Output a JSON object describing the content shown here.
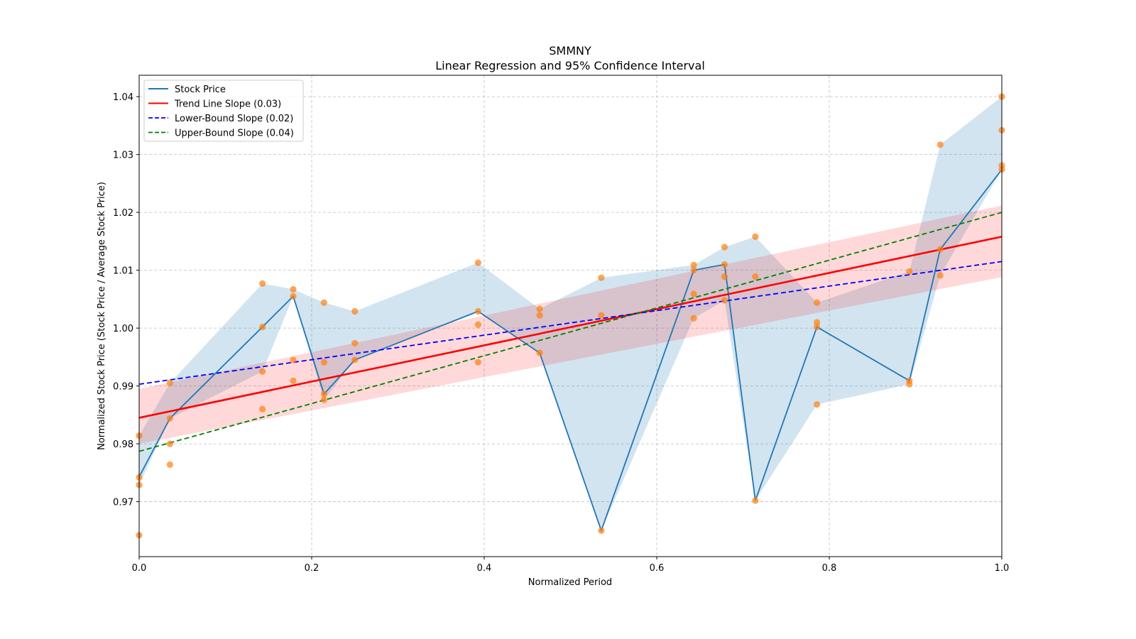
{
  "chart_data": {
    "type": "line",
    "title": "SMMNY",
    "subtitle": "Linear Regression and 95% Confidence Interval",
    "xlabel": "Normalized Period",
    "ylabel": "Normalized Stock Price (Stock Price / Average Stock Price)",
    "xlim": [
      0.0,
      1.0
    ],
    "ylim": [
      0.9605,
      1.0437
    ],
    "xticks": [
      0.0,
      0.2,
      0.4,
      0.6,
      0.8,
      1.0
    ],
    "xtick_labels": [
      "0.0",
      "0.2",
      "0.4",
      "0.6",
      "0.8",
      "1.0"
    ],
    "yticks": [
      0.97,
      0.98,
      0.99,
      1.0,
      1.01,
      1.02,
      1.03,
      1.04
    ],
    "ytick_labels": [
      "0.97",
      "0.98",
      "0.99",
      "1.00",
      "1.01",
      "1.02",
      "1.03",
      "1.04"
    ],
    "grid": true,
    "legend_position": "top-left",
    "legend": [
      {
        "label": "Stock Price",
        "color": "#1f77b4",
        "style": "solid"
      },
      {
        "label": "Trend Line Slope (0.03)",
        "color": "#ff0000",
        "style": "solid"
      },
      {
        "label": "Lower-Bound Slope (0.02)",
        "color": "#0000ff",
        "style": "dashed"
      },
      {
        "label": "Upper-Bound Slope (0.04)",
        "color": "#008000",
        "style": "dashed"
      }
    ],
    "series": [
      {
        "name": "Stock Price",
        "type": "line",
        "color": "#1f77b4",
        "x": [
          0.0,
          0.0357,
          0.1429,
          0.1786,
          0.2143,
          0.25,
          0.3929,
          0.4643,
          0.5357,
          0.6429,
          0.6786,
          0.7143,
          0.7857,
          0.8929,
          0.9286,
          1.0
        ],
        "y": [
          0.9743,
          0.9844,
          1.0002,
          1.0055,
          0.9886,
          0.9945,
          1.0029,
          0.9957,
          0.965,
          1.01,
          1.011,
          0.9702,
          1.0002,
          0.9909,
          1.0136,
          1.0274
        ]
      },
      {
        "name": "Price Range Band",
        "type": "area",
        "color": "#1f77b4",
        "opacity": 0.2,
        "x": [
          0.0,
          0.0357,
          0.1429,
          0.1786,
          0.2143,
          0.25,
          0.3929,
          0.4643,
          0.5357,
          0.6429,
          0.6786,
          0.7143,
          0.7857,
          0.8929,
          0.9286,
          1.0
        ],
        "y_low": [
          0.9729,
          0.9844,
          0.9925,
          1.0055,
          0.9876,
          0.9945,
          1.0029,
          0.9957,
          0.965,
          1.0017,
          1.0048,
          0.9702,
          0.9868,
          0.9903,
          1.0091,
          1.0274
        ],
        "y_high": [
          0.9814,
          0.9905,
          1.0077,
          1.0067,
          1.0044,
          1.0029,
          1.0113,
          1.0033,
          1.0087,
          1.0109,
          1.014,
          1.0158,
          1.0044,
          1.0098,
          1.0317,
          1.04
        ]
      },
      {
        "name": "Observations",
        "type": "scatter",
        "color": "#ff7f0e",
        "points": [
          [
            0.0,
            0.9814
          ],
          [
            0.0,
            0.9742
          ],
          [
            0.0,
            0.9729
          ],
          [
            0.0,
            0.9642
          ],
          [
            0.0357,
            0.9905
          ],
          [
            0.0357,
            0.9844
          ],
          [
            0.0357,
            0.98
          ],
          [
            0.0357,
            0.9764
          ],
          [
            0.1429,
            1.0077
          ],
          [
            0.1429,
            1.0002
          ],
          [
            0.1429,
            0.9925
          ],
          [
            0.1429,
            0.986
          ],
          [
            0.1786,
            1.0067
          ],
          [
            0.1786,
            1.0055
          ],
          [
            0.1786,
            0.9945
          ],
          [
            0.1786,
            0.9909
          ],
          [
            0.2143,
            1.0044
          ],
          [
            0.2143,
            0.9941
          ],
          [
            0.2143,
            0.9886
          ],
          [
            0.2143,
            0.9876
          ],
          [
            0.25,
            1.0029
          ],
          [
            0.25,
            0.9974
          ],
          [
            0.25,
            0.9945
          ],
          [
            0.3929,
            1.0113
          ],
          [
            0.3929,
            1.0029
          ],
          [
            0.3929,
            1.0006
          ],
          [
            0.3929,
            0.9941
          ],
          [
            0.4643,
            1.0033
          ],
          [
            0.4643,
            1.0022
          ],
          [
            0.4643,
            0.9957
          ],
          [
            0.5357,
            1.0087
          ],
          [
            0.5357,
            1.0022
          ],
          [
            0.5357,
            0.965
          ],
          [
            0.6429,
            1.0109
          ],
          [
            0.6429,
            1.01
          ],
          [
            0.6429,
            1.0059
          ],
          [
            0.6429,
            1.0017
          ],
          [
            0.6786,
            1.014
          ],
          [
            0.6786,
            1.011
          ],
          [
            0.6786,
            1.0089
          ],
          [
            0.6786,
            1.0048
          ],
          [
            0.7143,
            1.0158
          ],
          [
            0.7143,
            1.0089
          ],
          [
            0.7143,
            0.9702
          ],
          [
            0.7857,
            1.0044
          ],
          [
            0.7857,
            1.001
          ],
          [
            0.7857,
            1.0002
          ],
          [
            0.7857,
            0.9868
          ],
          [
            0.8929,
            1.0098
          ],
          [
            0.8929,
            0.9909
          ],
          [
            0.8929,
            0.9903
          ],
          [
            0.9286,
            1.0317
          ],
          [
            0.9286,
            1.0136
          ],
          [
            0.9286,
            1.0091
          ],
          [
            1.0,
            1.04
          ],
          [
            1.0,
            1.0342
          ],
          [
            1.0,
            1.0281
          ],
          [
            1.0,
            1.0274
          ]
        ]
      },
      {
        "name": "Trend Line Slope (0.03)",
        "type": "line",
        "color": "#ff0000",
        "x": [
          0.0,
          1.0
        ],
        "y": [
          0.9845,
          1.0158
        ]
      },
      {
        "name": "Trend Confidence Band",
        "type": "area",
        "color": "#ff0000",
        "opacity": 0.15,
        "x": [
          0.0,
          1.0
        ],
        "y_low": [
          0.98,
          1.0088
        ],
        "y_high": [
          0.9895,
          1.0212
        ]
      },
      {
        "name": "Lower-Bound Slope (0.02)",
        "type": "line",
        "color": "#0000ff",
        "dashed": true,
        "x": [
          0.0,
          1.0
        ],
        "y": [
          0.9903,
          1.0115
        ]
      },
      {
        "name": "Upper-Bound Slope (0.04)",
        "type": "line",
        "color": "#008000",
        "dashed": true,
        "x": [
          0.0,
          1.0
        ],
        "y": [
          0.9787,
          1.02
        ]
      }
    ]
  }
}
